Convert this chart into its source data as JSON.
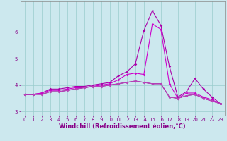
{
  "xlabel": "Windchill (Refroidissement éolien,°C)",
  "bg_color": "#cce8ee",
  "grid_color": "#99cccc",
  "line_colors": [
    "#aa00aa",
    "#cc00cc",
    "#880088",
    "#bb44bb"
  ],
  "xlim": [
    -0.5,
    23.5
  ],
  "ylim": [
    2.85,
    7.15
  ],
  "yticks": [
    3,
    4,
    5,
    6
  ],
  "xticks": [
    0,
    1,
    2,
    3,
    4,
    5,
    6,
    7,
    8,
    9,
    10,
    11,
    12,
    13,
    14,
    15,
    16,
    17,
    18,
    19,
    20,
    21,
    22,
    23
  ],
  "series": [
    [
      3.65,
      3.65,
      3.7,
      3.85,
      3.85,
      3.9,
      3.95,
      3.95,
      4.0,
      4.05,
      4.1,
      4.35,
      4.5,
      4.8,
      6.05,
      6.8,
      6.25,
      4.7,
      3.55,
      3.75,
      4.25,
      3.85,
      3.55,
      3.3
    ],
    [
      3.65,
      3.65,
      3.7,
      3.8,
      3.8,
      3.85,
      3.9,
      3.9,
      3.95,
      4.0,
      4.05,
      4.2,
      4.4,
      4.45,
      4.4,
      6.3,
      6.1,
      4.05,
      3.5,
      3.7,
      3.7,
      3.55,
      3.45,
      3.3
    ],
    [
      3.65,
      3.65,
      3.65,
      3.75,
      3.75,
      3.8,
      3.85,
      3.9,
      3.95,
      3.95,
      4.0,
      4.05,
      4.1,
      4.15,
      4.1,
      4.05,
      4.05,
      3.55,
      3.5,
      3.6,
      3.65,
      3.5,
      3.4,
      3.3
    ],
    [
      3.65,
      3.65,
      3.65,
      3.75,
      3.75,
      3.8,
      3.85,
      3.9,
      3.95,
      3.95,
      4.0,
      4.05,
      4.1,
      4.15,
      4.1,
      4.05,
      4.05,
      3.55,
      3.5,
      3.6,
      3.65,
      3.5,
      3.4,
      3.3
    ]
  ],
  "marker": "D",
  "marker_size": 1.8,
  "linewidth": 0.8,
  "tick_fontsize": 5.0,
  "xlabel_fontsize": 6.0
}
